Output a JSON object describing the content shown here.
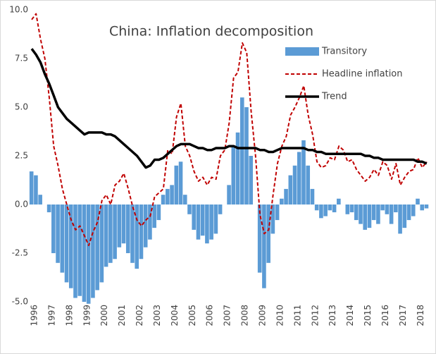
{
  "chart_data": {
    "type": "combo",
    "title": "China: Inflation decomposition",
    "x": [
      1996,
      1996.25,
      1996.5,
      1996.75,
      1997,
      1997.25,
      1997.5,
      1997.75,
      1998,
      1998.25,
      1998.5,
      1998.75,
      1999,
      1999.25,
      1999.5,
      1999.75,
      2000,
      2000.25,
      2000.5,
      2000.75,
      2001,
      2001.25,
      2001.5,
      2001.75,
      2002,
      2002.25,
      2002.5,
      2002.75,
      2003,
      2003.25,
      2003.5,
      2003.75,
      2004,
      2004.25,
      2004.5,
      2004.75,
      2005,
      2005.25,
      2005.5,
      2005.75,
      2006,
      2006.25,
      2006.5,
      2006.75,
      2007,
      2007.25,
      2007.5,
      2007.75,
      2008,
      2008.25,
      2008.5,
      2008.75,
      2009,
      2009.25,
      2009.5,
      2009.75,
      2010,
      2010.25,
      2010.5,
      2010.75,
      2011,
      2011.25,
      2011.5,
      2011.75,
      2012,
      2012.25,
      2012.5,
      2012.75,
      2013,
      2013.25,
      2013.5,
      2013.75,
      2014,
      2014.25,
      2014.5,
      2014.75,
      2015,
      2015.25,
      2015.5,
      2015.75,
      2016,
      2016.25,
      2016.5,
      2016.75,
      2017,
      2017.25,
      2017.5,
      2017.75,
      2018,
      2018.25,
      2018.5
    ],
    "series": [
      {
        "name": "Transitory",
        "type": "bar",
        "color": "#5b9bd5",
        "values": [
          1.7,
          1.5,
          0.5,
          0.0,
          -0.4,
          -2.5,
          -3.0,
          -3.5,
          -4.0,
          -4.3,
          -4.8,
          -4.7,
          -5.0,
          -5.1,
          -4.8,
          -4.4,
          -4.0,
          -3.2,
          -3.0,
          -2.8,
          -2.2,
          -2.0,
          -2.5,
          -3.0,
          -3.3,
          -2.8,
          -2.2,
          -1.8,
          -1.2,
          -0.8,
          0.5,
          0.8,
          1.0,
          2.0,
          2.2,
          0.5,
          -0.5,
          -1.3,
          -1.8,
          -1.6,
          -2.0,
          -1.8,
          -1.5,
          -0.5,
          0.0,
          1.0,
          3.0,
          3.7,
          5.5,
          5.0,
          2.5,
          0.0,
          -3.5,
          -4.3,
          -3.0,
          -1.5,
          -0.8,
          0.3,
          0.8,
          1.5,
          2.0,
          2.7,
          3.3,
          2.0,
          0.8,
          -0.3,
          -0.7,
          -0.6,
          -0.3,
          -0.4,
          0.3,
          0.0,
          -0.5,
          -0.4,
          -0.8,
          -1.0,
          -1.3,
          -1.2,
          -0.8,
          -1.0,
          -0.3,
          -0.5,
          -1.0,
          -0.4,
          -1.5,
          -1.2,
          -0.8,
          -0.6,
          0.3,
          -0.3,
          -0.2
        ]
      },
      {
        "name": "Headline inflation",
        "type": "line",
        "style": "dashed",
        "color": "#c00000",
        "values": [
          9.5,
          9.8,
          8.5,
          7.5,
          5.5,
          3.0,
          2.0,
          0.8,
          0.0,
          -0.8,
          -1.3,
          -1.1,
          -1.6,
          -2.1,
          -1.4,
          -0.9,
          0.2,
          0.5,
          0.0,
          1.0,
          1.2,
          1.6,
          0.8,
          -0.1,
          -0.8,
          -1.1,
          -0.8,
          -0.6,
          0.4,
          0.6,
          0.8,
          2.8,
          2.6,
          4.5,
          5.2,
          3.0,
          2.5,
          1.7,
          1.2,
          1.4,
          1.0,
          1.4,
          1.3,
          2.5,
          2.8,
          4.2,
          6.5,
          6.8,
          8.3,
          7.8,
          4.8,
          2.5,
          -0.5,
          -1.5,
          -1.3,
          0.5,
          2.1,
          3.0,
          3.5,
          4.6,
          5.0,
          5.5,
          6.1,
          4.6,
          3.6,
          2.2,
          1.9,
          2.0,
          2.4,
          2.3,
          3.0,
          2.8,
          2.2,
          2.3,
          1.8,
          1.5,
          1.2,
          1.4,
          1.8,
          1.5,
          2.2,
          2.0,
          1.3,
          2.1,
          1.0,
          1.4,
          1.7,
          1.8,
          2.4,
          1.9,
          2.2
        ]
      },
      {
        "name": "Trend",
        "type": "line",
        "style": "solid",
        "color": "#000000",
        "values": [
          8.0,
          7.7,
          7.3,
          6.7,
          6.2,
          5.6,
          5.0,
          4.7,
          4.4,
          4.2,
          4.0,
          3.8,
          3.6,
          3.7,
          3.7,
          3.7,
          3.7,
          3.6,
          3.6,
          3.5,
          3.3,
          3.1,
          2.9,
          2.7,
          2.5,
          2.2,
          1.9,
          2.0,
          2.3,
          2.3,
          2.4,
          2.6,
          2.8,
          3.0,
          3.1,
          3.1,
          3.1,
          3.0,
          2.9,
          2.9,
          2.8,
          2.8,
          2.9,
          2.9,
          2.9,
          3.0,
          3.0,
          2.9,
          2.9,
          2.9,
          2.9,
          2.9,
          2.8,
          2.8,
          2.7,
          2.7,
          2.8,
          2.9,
          2.9,
          2.9,
          2.9,
          2.9,
          2.9,
          2.8,
          2.8,
          2.7,
          2.7,
          2.6,
          2.6,
          2.6,
          2.6,
          2.6,
          2.6,
          2.6,
          2.6,
          2.6,
          2.5,
          2.5,
          2.4,
          2.4,
          2.3,
          2.3,
          2.3,
          2.3,
          2.3,
          2.3,
          2.3,
          2.3,
          2.2,
          2.2,
          2.1
        ]
      }
    ],
    "xlim": [
      1996,
      2018.75
    ],
    "xticks": [
      1996,
      1997,
      1998,
      1999,
      2000,
      2001,
      2002,
      2003,
      2004,
      2005,
      2006,
      2007,
      2008,
      2009,
      2010,
      2011,
      2012,
      2013,
      2014,
      2015,
      2016,
      2017,
      2018
    ],
    "ylim": [
      -5,
      10
    ],
    "yticks": [
      {
        "value": -5,
        "label": "-5.0"
      },
      {
        "value": -2.5,
        "label": "-2.5"
      },
      {
        "value": 0,
        "label": "0.0"
      },
      {
        "value": 2.5,
        "label": "2.5"
      },
      {
        "value": 5,
        "label": "5.0"
      },
      {
        "value": 7.5,
        "label": "7.5"
      },
      {
        "value": 10,
        "label": "10.0"
      }
    ],
    "grid": false,
    "legend": "upper-right"
  }
}
